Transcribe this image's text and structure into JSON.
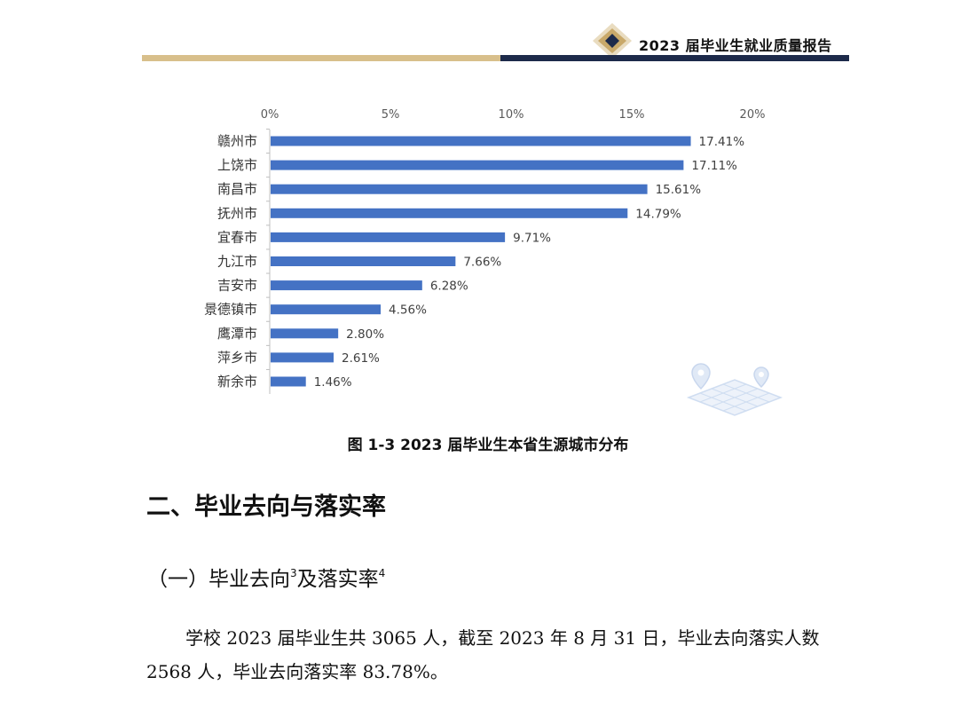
{
  "header": {
    "title": "2023 届毕业生就业质量报告",
    "colors": {
      "gold": "#d8bf8b",
      "navy": "#1d2a4a"
    },
    "logo_icon": "diamond-logo-icon"
  },
  "chart_data": {
    "type": "bar",
    "orientation": "horizontal",
    "categories": [
      "赣州市",
      "上饶市",
      "南昌市",
      "抚州市",
      "宜春市",
      "九江市",
      "吉安市",
      "景德镇市",
      "鹰潭市",
      "萍乡市",
      "新余市"
    ],
    "values": [
      17.41,
      17.11,
      15.61,
      14.79,
      9.71,
      7.66,
      6.28,
      4.56,
      2.8,
      2.61,
      1.46
    ],
    "value_labels": [
      "17.41%",
      "17.11%",
      "15.61%",
      "14.79%",
      "9.71%",
      "7.66%",
      "6.28%",
      "4.56%",
      "2.80%",
      "2.61%",
      "1.46%"
    ],
    "x_ticks": [
      "0%",
      "5%",
      "10%",
      "15%",
      "20%"
    ],
    "xlim": [
      0,
      20
    ],
    "axis_position": "top",
    "bar_color": "#4472c4",
    "grid": false,
    "caption": "图 1-3 2023 届毕业生本省生源城市分布"
  },
  "decoration": {
    "map_icon": "map-location-icon"
  },
  "section": {
    "title": "二、毕业去向与落实率",
    "subsection_title": "（一）毕业去向",
    "sup_a": "3",
    "subsection_mid": "及落实率",
    "sup_b": "4",
    "paragraph": "学校 2023 届毕业生共 3065 人，截至 2023 年 8 月 31 日，毕业去向落实人数 2568 人，毕业去向落实率 83.78%。"
  }
}
